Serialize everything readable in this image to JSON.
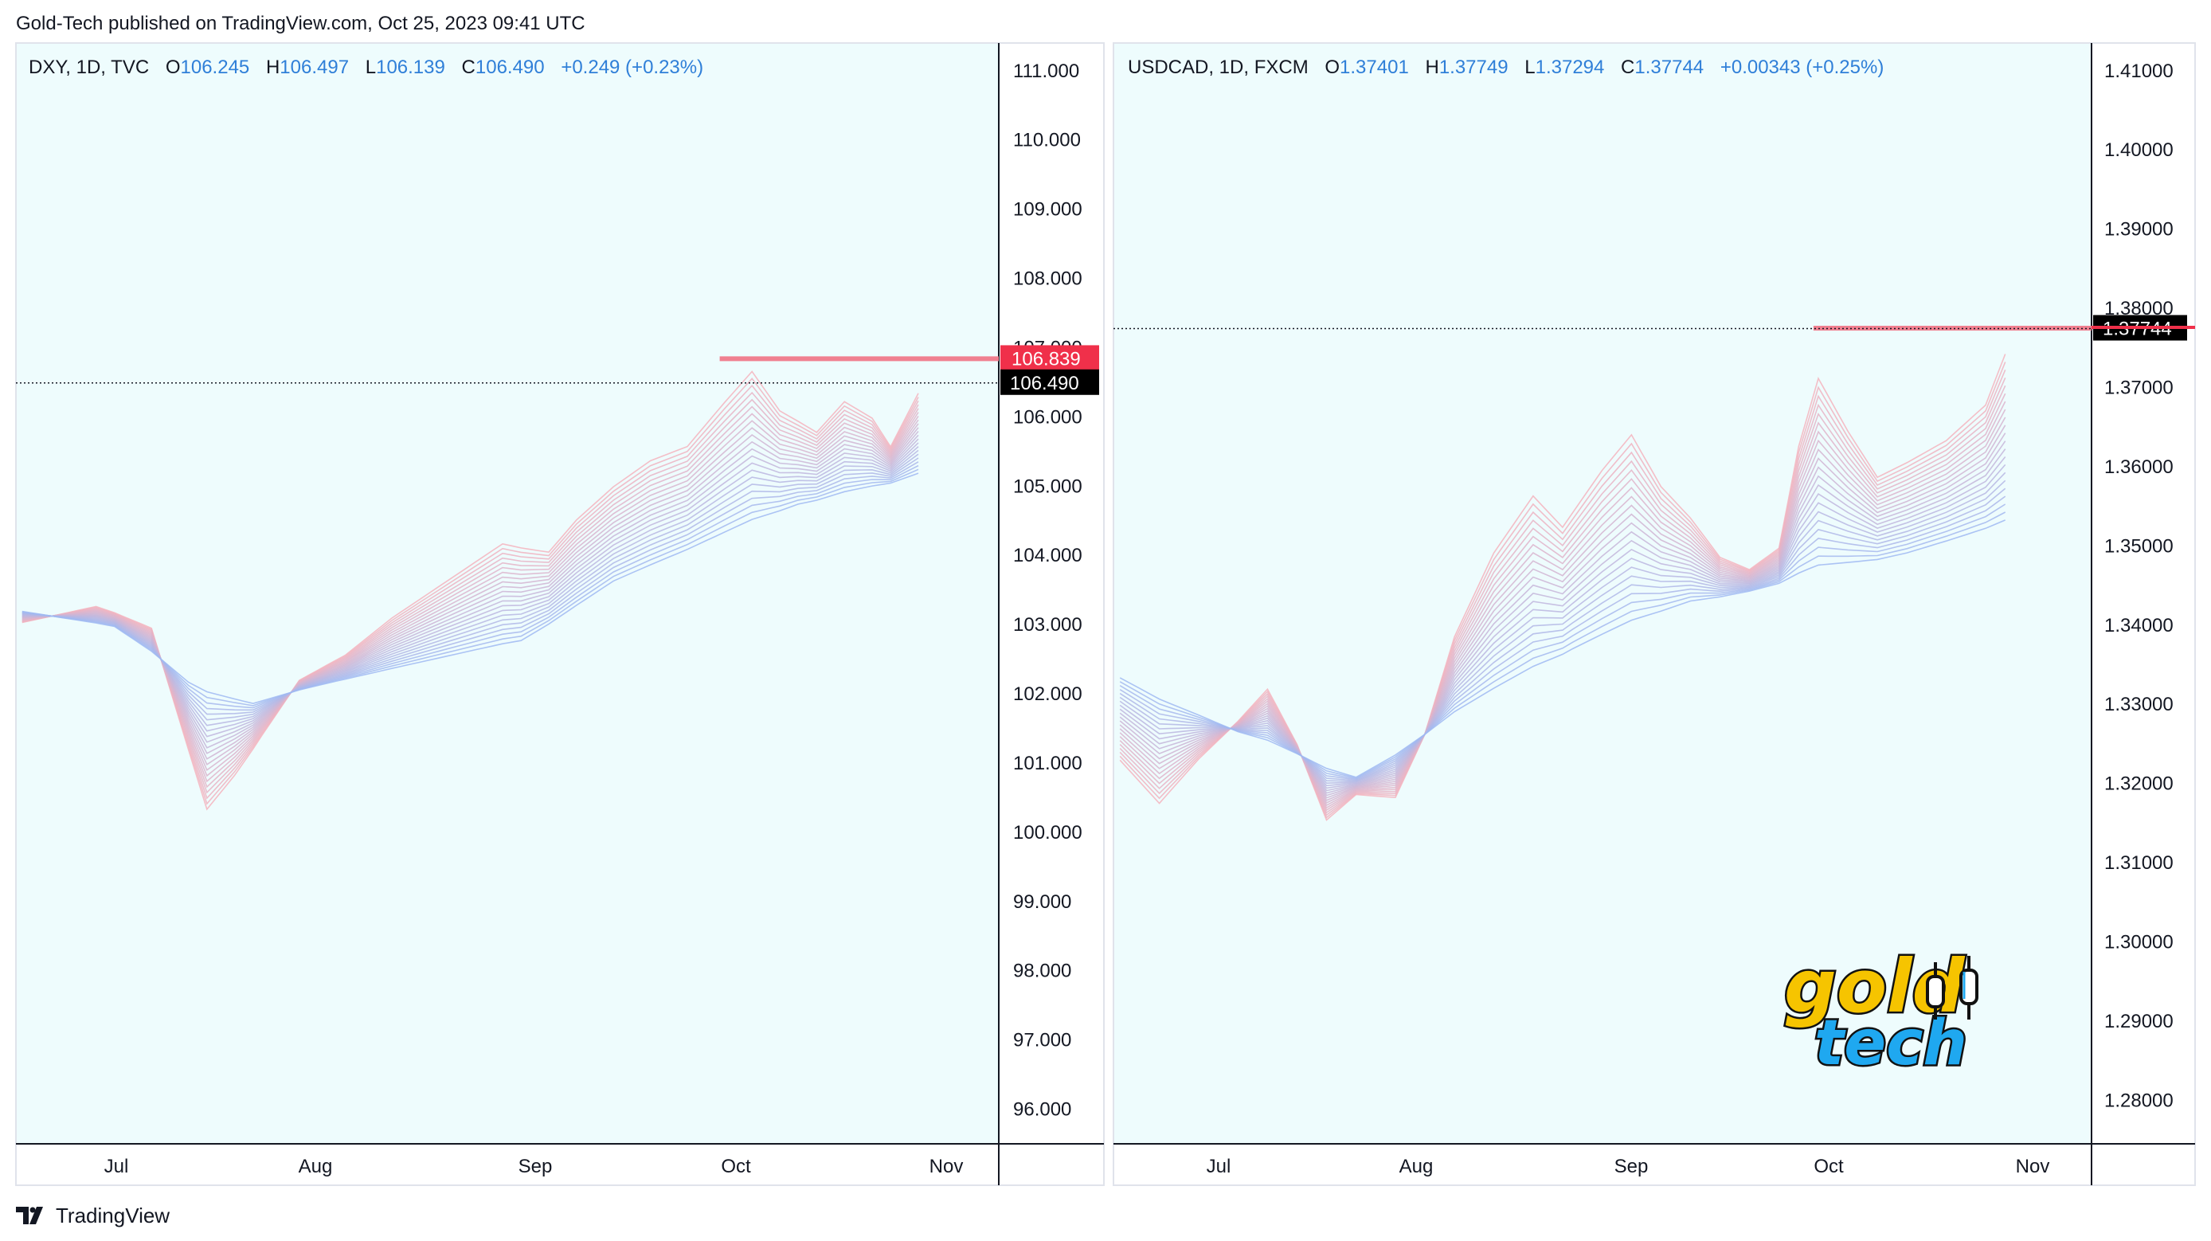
{
  "header": {
    "attribution": "Gold-Tech published on TradingView.com, Oct 25, 2023 09:41 UTC"
  },
  "footer": {
    "brand": "TradingView"
  },
  "watermark": {
    "line1": "gold",
    "line2": "tech"
  },
  "colors": {
    "up": "#26a0e0",
    "down": "#e0265a",
    "level": "#f08090",
    "background": "#eefcfd",
    "price_label": "#000000",
    "level_label": "#f0304a"
  },
  "chart_data": [
    {
      "type": "candlestick",
      "legend": {
        "symbol": "DXY, 1D, TVC",
        "o_label": "O",
        "o": "106.245",
        "h_label": "H",
        "h": "106.497",
        "l_label": "L",
        "l": "106.139",
        "c_label": "C",
        "c": "106.490",
        "change": "+0.249 (+0.23%)"
      },
      "y_ticks": [
        "111.000",
        "110.000",
        "109.000",
        "108.000",
        "107.000",
        "106.000",
        "105.000",
        "104.000",
        "103.000",
        "102.000",
        "101.000",
        "100.000",
        "99.000",
        "98.000",
        "97.000",
        "96.000"
      ],
      "ylim": [
        95.5,
        111.4
      ],
      "x_ticks": [
        "Jul",
        "Aug",
        "Sep",
        "Oct",
        "Nov"
      ],
      "price_label": "106.490",
      "level_label": "106.839",
      "level": 106.839,
      "last": 106.49,
      "start": 103.0,
      "waypoints": [
        [
          0,
          103.0
        ],
        [
          8,
          103.3
        ],
        [
          14,
          103.0
        ],
        [
          17,
          101.5
        ],
        [
          20,
          100.0
        ],
        [
          23,
          100.6
        ],
        [
          26,
          101.3
        ],
        [
          30,
          102.2
        ],
        [
          35,
          102.6
        ],
        [
          40,
          103.2
        ],
        [
          46,
          103.8
        ],
        [
          52,
          104.4
        ],
        [
          57,
          104.2
        ],
        [
          60,
          104.7
        ],
        [
          64,
          105.2
        ],
        [
          68,
          105.6
        ],
        [
          72,
          105.8
        ],
        [
          76,
          106.5
        ],
        [
          79,
          107.0
        ],
        [
          82,
          106.3
        ],
        [
          86,
          105.9
        ],
        [
          89,
          106.4
        ],
        [
          92,
          106.1
        ],
        [
          94,
          105.6
        ],
        [
          97,
          106.49
        ]
      ],
      "ribbon_center": [
        [
          0,
          103.2
        ],
        [
          10,
          103.0
        ],
        [
          18,
          102.3
        ],
        [
          25,
          102.0
        ],
        [
          34,
          102.3
        ],
        [
          44,
          102.6
        ],
        [
          54,
          102.9
        ],
        [
          64,
          103.8
        ],
        [
          74,
          104.4
        ],
        [
          84,
          105.0
        ],
        [
          97,
          105.5
        ]
      ]
    },
    {
      "type": "candlestick",
      "legend": {
        "symbol": "USDCAD, 1D, FXCM",
        "o_label": "O",
        "o": "1.37401",
        "h_label": "H",
        "h": "1.37749",
        "l_label": "L",
        "l": "1.37294",
        "c_label": "C",
        "c": "1.37744",
        "change": "+0.00343 (+0.25%)"
      },
      "y_ticks": [
        "1.41000",
        "1.40000",
        "1.39000",
        "1.38000",
        "1.37000",
        "1.36000",
        "1.35000",
        "1.34000",
        "1.33000",
        "1.32000",
        "1.31000",
        "1.30000",
        "1.29000",
        "1.28000"
      ],
      "ylim": [
        1.2745,
        1.4135
      ],
      "x_ticks": [
        "Jul",
        "Aug",
        "Sep",
        "Oct",
        "Nov"
      ],
      "price_label": "1.37744",
      "level_label": "",
      "level": 1.37749,
      "last": 1.37744,
      "start": 1.321,
      "waypoints": [
        [
          0,
          1.321
        ],
        [
          4,
          1.315
        ],
        [
          8,
          1.322
        ],
        [
          12,
          1.328
        ],
        [
          15,
          1.333
        ],
        [
          18,
          1.325
        ],
        [
          21,
          1.314
        ],
        [
          24,
          1.318
        ],
        [
          28,
          1.317
        ],
        [
          31,
          1.326
        ],
        [
          34,
          1.34
        ],
        [
          38,
          1.352
        ],
        [
          42,
          1.36
        ],
        [
          45,
          1.355
        ],
        [
          49,
          1.363
        ],
        [
          52,
          1.368
        ],
        [
          55,
          1.36
        ],
        [
          58,
          1.355
        ],
        [
          61,
          1.349
        ],
        [
          64,
          1.347
        ],
        [
          67,
          1.35
        ],
        [
          69,
          1.365
        ],
        [
          71,
          1.375
        ],
        [
          74,
          1.367
        ],
        [
          77,
          1.36
        ],
        [
          80,
          1.362
        ],
        [
          84,
          1.365
        ],
        [
          88,
          1.37
        ],
        [
          90,
          1.37744
        ]
      ],
      "ribbon_center": [
        [
          0,
          1.334
        ],
        [
          12,
          1.327
        ],
        [
          24,
          1.322
        ],
        [
          34,
          1.33
        ],
        [
          46,
          1.338
        ],
        [
          58,
          1.345
        ],
        [
          70,
          1.349
        ],
        [
          80,
          1.352
        ],
        [
          90,
          1.356
        ]
      ]
    }
  ]
}
